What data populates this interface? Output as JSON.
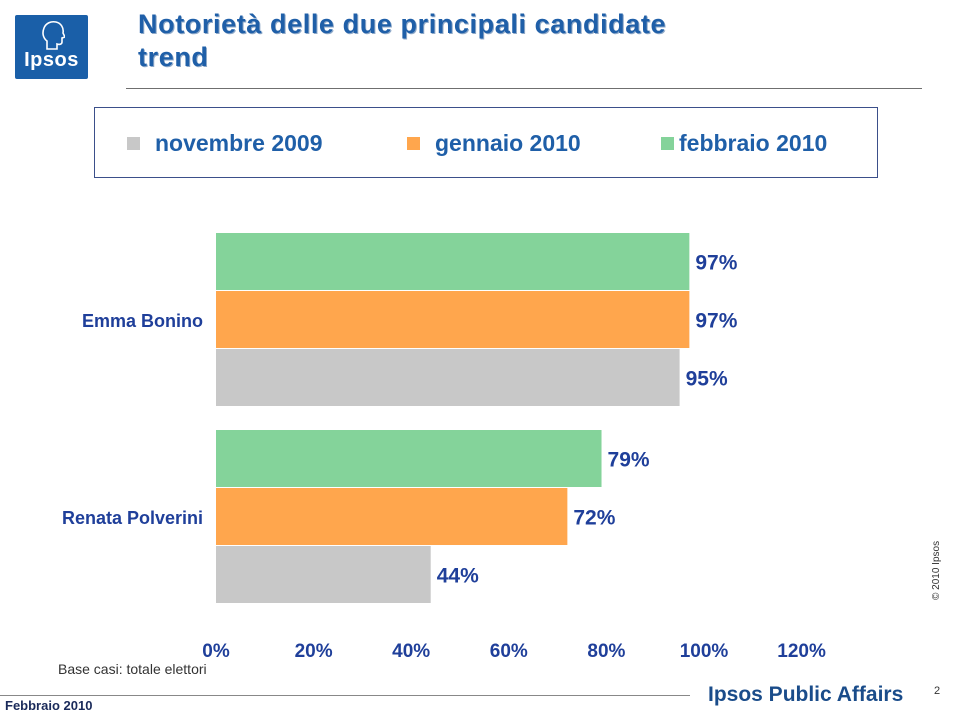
{
  "brand": {
    "logo_text": "Ipsos",
    "logo_color": "#1a5fa8",
    "footer_brand": "Ipsos Public Affairs",
    "footer_date": "Febbraio 2010",
    "copyright": "© 2010 Ipsos",
    "page_number": "2"
  },
  "title_line1": "Notorietà delle due principali candidate",
  "title_line2": "trend",
  "base_note": "Base casi: totale elettori",
  "colors": {
    "novembre_2009": "#c8c8c8",
    "gennaio_2010": "#ffa64d",
    "febbraio_2010": "#84d39a",
    "title": "#1f5fa8",
    "labels": "#1f3f9a"
  },
  "legend": [
    {
      "label": "novembre 2009",
      "color": "#c8c8c8"
    },
    {
      "label": "gennaio 2010",
      "color": "#ffa64d"
    },
    {
      "label": "febbraio 2010",
      "color": "#84d39a"
    }
  ],
  "chart_data": {
    "type": "bar",
    "orientation": "horizontal",
    "title": "Notorietà delle due principali candidate trend",
    "categories": [
      "Emma Bonino",
      "Renata Polverini"
    ],
    "series": [
      {
        "name": "febbraio 2010",
        "color": "#84d39a",
        "values": [
          97,
          79
        ],
        "labels": [
          "97%",
          "79%"
        ]
      },
      {
        "name": "gennaio 2010",
        "color": "#ffa64d",
        "values": [
          97,
          72
        ],
        "labels": [
          "97%",
          "72%"
        ]
      },
      {
        "name": "novembre 2009",
        "color": "#c8c8c8",
        "values": [
          95,
          44
        ],
        "labels": [
          "95%",
          "44%"
        ]
      }
    ],
    "xlim": [
      0,
      120
    ],
    "x_ticks": [
      0,
      20,
      40,
      60,
      80,
      100,
      120
    ],
    "x_tick_labels": [
      "0%",
      "20%",
      "40%",
      "60%",
      "80%",
      "100%",
      "120%"
    ],
    "grid": false,
    "legend_position": "top"
  }
}
